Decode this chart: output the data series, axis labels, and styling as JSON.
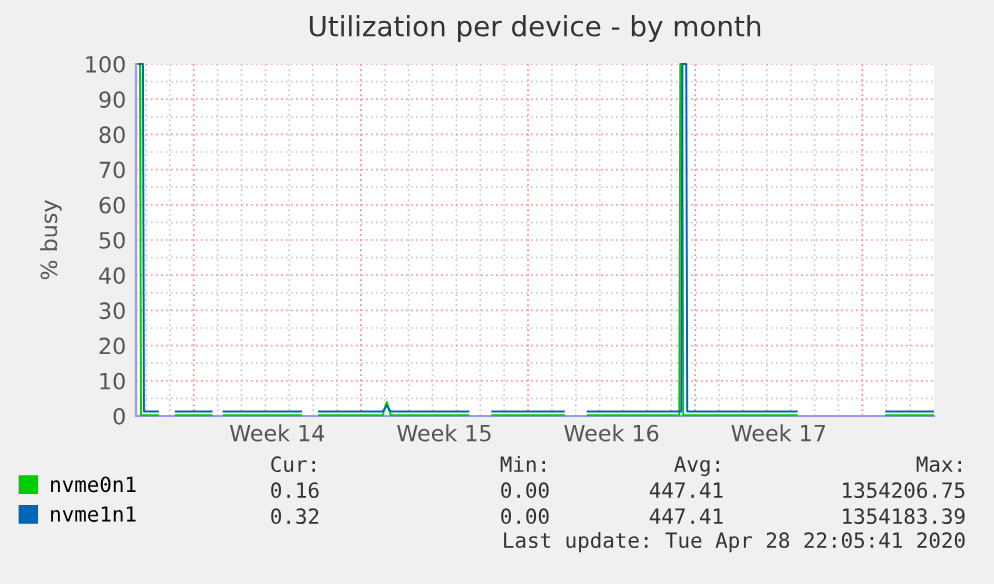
{
  "chart_data": {
    "type": "line",
    "title": "Utilization per device - by month",
    "ylabel": "% busy",
    "x": [
      "2020-03-27T18:00",
      "2020-03-27T21:00",
      "2020-03-27T22:00",
      "2020-03-28T12:00",
      "2020-03-28T13:00",
      "2020-03-29T06:00",
      "2020-03-30T18:00",
      "2020-03-30T19:00",
      "2020-03-31T06:00",
      "2020-04-03T12:00",
      "2020-04-03T13:00",
      "2020-04-04T06:00",
      "2020-04-06T22:00",
      "2020-04-07T02:00",
      "2020-04-07T06:00",
      "2020-04-10T12:00",
      "2020-04-10T13:00",
      "2020-04-11T12:00",
      "2020-04-14T12:00",
      "2020-04-14T13:00",
      "2020-04-15T12:00",
      "2020-04-19T10:00",
      "2020-04-19T11:00",
      "2020-04-19T15:00",
      "2020-04-19T16:00",
      "2020-04-24T06:00",
      "2020-04-24T07:00",
      "2020-04-28T00:00",
      "2020-04-29T23:00"
    ],
    "series": [
      {
        "name": "nvme0n1",
        "color": "#00cc00",
        "x": [
          "2020-03-27T16:00",
          "2020-03-27T18:00",
          "2020-03-27T19:00",
          "2020-03-28T12:00",
          "2020-03-28T13:00",
          "2020-03-29T06:00",
          "2020-03-30T18:00",
          "2020-03-30T19:00",
          "2020-03-31T06:00",
          "2020-04-03T12:00",
          "2020-04-03T13:00",
          "2020-04-04T06:00",
          "2020-04-06T22:00",
          "2020-04-07T02:00",
          "2020-04-07T06:00",
          "2020-04-10T12:00",
          "2020-04-10T13:00",
          "2020-04-11T12:00",
          "2020-04-14T12:00",
          "2020-04-14T13:00",
          "2020-04-15T12:00",
          "2020-04-19T08:00",
          "2020-04-19T09:00",
          "2020-04-19T11:00",
          "2020-04-19T12:00",
          "2020-04-24T06:00",
          "2020-04-24T07:00",
          "2020-04-28T00:00",
          "2020-04-29T23:00"
        ],
        "values": [
          100,
          100,
          0.2,
          0.2,
          null,
          0.2,
          0.2,
          null,
          0.2,
          0.2,
          null,
          0.2,
          0.2,
          4,
          0.2,
          0.2,
          null,
          0.2,
          0.2,
          null,
          0.2,
          0.2,
          100,
          100,
          0.2,
          0.2,
          null,
          0.2,
          0.2
        ]
      },
      {
        "name": "nvme1n1",
        "color": "#0066b3",
        "values": [
          100,
          100,
          1.3,
          1.3,
          null,
          1.3,
          1.3,
          null,
          1.3,
          1.3,
          null,
          1.3,
          1.3,
          3,
          1.3,
          1.3,
          null,
          1.3,
          1.3,
          null,
          1.3,
          1.3,
          100,
          100,
          1.3,
          1.3,
          null,
          1.3,
          1.3
        ]
      }
    ],
    "xlim": [
      "2020-03-27T14:00",
      "2020-04-30T00:00"
    ],
    "xticks": [
      {
        "value": "2020-03-30",
        "label": null
      },
      {
        "value": "2020-04-02T12:00",
        "label": "Week 14"
      },
      {
        "value": "2020-04-06",
        "label": null
      },
      {
        "value": "2020-04-09T12:00",
        "label": "Week 15"
      },
      {
        "value": "2020-04-13",
        "label": null
      },
      {
        "value": "2020-04-16T12:00",
        "label": "Week 16"
      },
      {
        "value": "2020-04-20",
        "label": null
      },
      {
        "value": "2020-04-23T12:00",
        "label": "Week 17"
      },
      {
        "value": "2020-04-27",
        "label": null
      }
    ],
    "ylim": [
      0,
      100
    ],
    "yticks": [
      0,
      10,
      20,
      30,
      40,
      50,
      60,
      70,
      80,
      90,
      100
    ],
    "grid": true,
    "legend": "bottom",
    "line_style": "solid",
    "marker": "none",
    "annotations": [
      "Cur:",
      "Min:",
      "Avg:",
      "Max:",
      "0.16",
      "0.00",
      "447.41",
      "1354206.75",
      "0.32",
      "0.00",
      "447.41",
      "1354183.39",
      "Last update: Tue Apr 28 22:05:41 2020"
    ]
  }
}
